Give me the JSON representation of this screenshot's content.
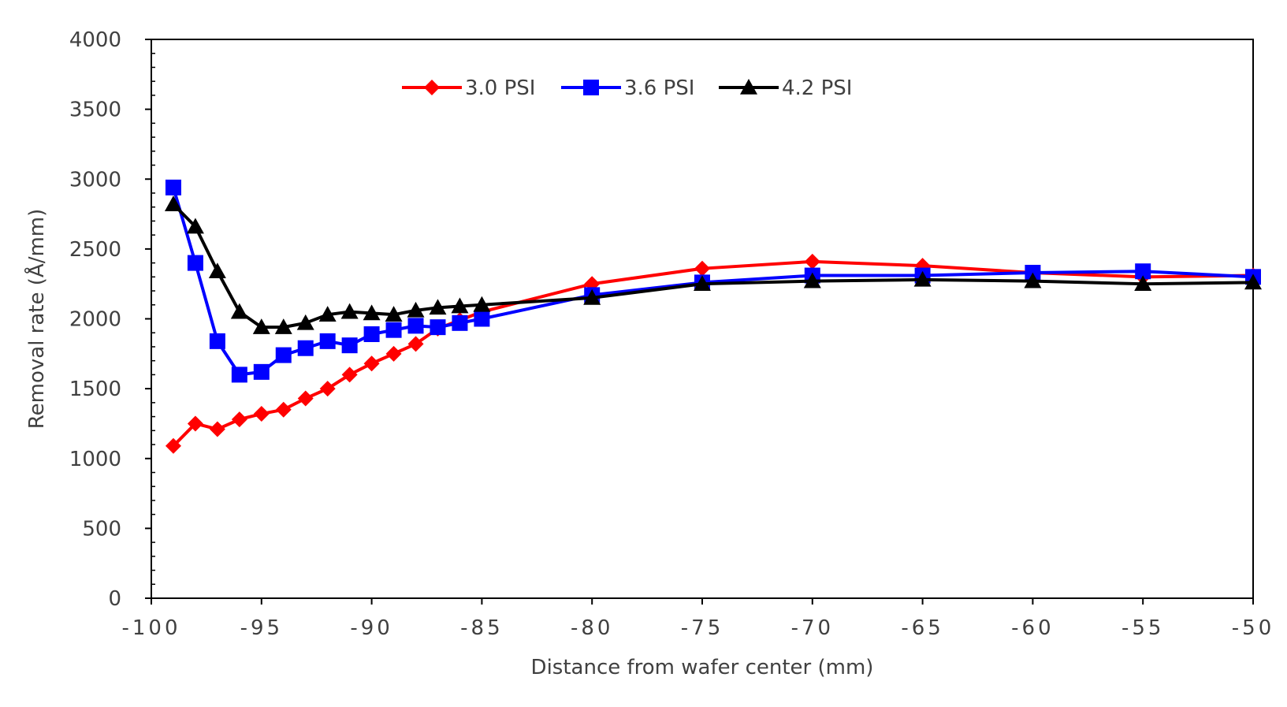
{
  "chart_data": {
    "type": "line",
    "title": "",
    "xlabel": "Distance from wafer center (mm)",
    "ylabel": "Removal rate (Å/mm)",
    "xlim": [
      -100,
      -50
    ],
    "ylim": [
      0,
      4000
    ],
    "xticks": [
      -100,
      -95,
      -90,
      -85,
      -80,
      -75,
      -70,
      -65,
      -60,
      -55,
      -50
    ],
    "yticks": [
      0,
      500,
      1000,
      1500,
      2000,
      2500,
      3000,
      3500,
      4000
    ],
    "xtick_labels": [
      "-100",
      "-95",
      "-90",
      "-85",
      "-80",
      "-75",
      "-70",
      "-65",
      "-60",
      "-55",
      "-50"
    ],
    "ytick_labels": [
      "0",
      "500",
      "1000",
      "1500",
      "2000",
      "2500",
      "3000",
      "3500",
      "4000"
    ],
    "grid": false,
    "legend_position": "top-center",
    "series": [
      {
        "name": "3.0 PSI",
        "color": "#ff0000",
        "marker": "diamond",
        "x": [
          -99,
          -98,
          -97,
          -96,
          -95,
          -94,
          -93,
          -92,
          -91,
          -90,
          -89,
          -88,
          -87,
          -86,
          -85,
          -80,
          -75,
          -70,
          -65,
          -60,
          -55,
          -50
        ],
        "y": [
          1090,
          1250,
          1210,
          1280,
          1320,
          1350,
          1430,
          1500,
          1600,
          1680,
          1750,
          1820,
          1930,
          1990,
          2050,
          2250,
          2360,
          2410,
          2380,
          2330,
          2300,
          2310
        ]
      },
      {
        "name": "3.6 PSI",
        "color": "#0000ff",
        "marker": "square",
        "x": [
          -99,
          -98,
          -97,
          -96,
          -95,
          -94,
          -93,
          -92,
          -91,
          -90,
          -89,
          -88,
          -87,
          -86,
          -85,
          -80,
          -75,
          -70,
          -65,
          -60,
          -55,
          -50
        ],
        "y": [
          2940,
          2400,
          1840,
          1600,
          1620,
          1740,
          1790,
          1840,
          1810,
          1890,
          1920,
          1950,
          1940,
          1970,
          2000,
          2170,
          2260,
          2310,
          2310,
          2330,
          2340,
          2300
        ]
      },
      {
        "name": "4.2 PSI",
        "color": "#000000",
        "marker": "triangle",
        "x": [
          -99,
          -98,
          -97,
          -96,
          -95,
          -94,
          -93,
          -92,
          -91,
          -90,
          -89,
          -88,
          -87,
          -86,
          -85,
          -80,
          -75,
          -70,
          -65,
          -60,
          -55,
          -50
        ],
        "y": [
          2820,
          2660,
          2340,
          2050,
          1940,
          1940,
          1970,
          2030,
          2050,
          2040,
          2030,
          2060,
          2080,
          2090,
          2100,
          2150,
          2250,
          2270,
          2280,
          2270,
          2250,
          2260
        ]
      }
    ]
  }
}
